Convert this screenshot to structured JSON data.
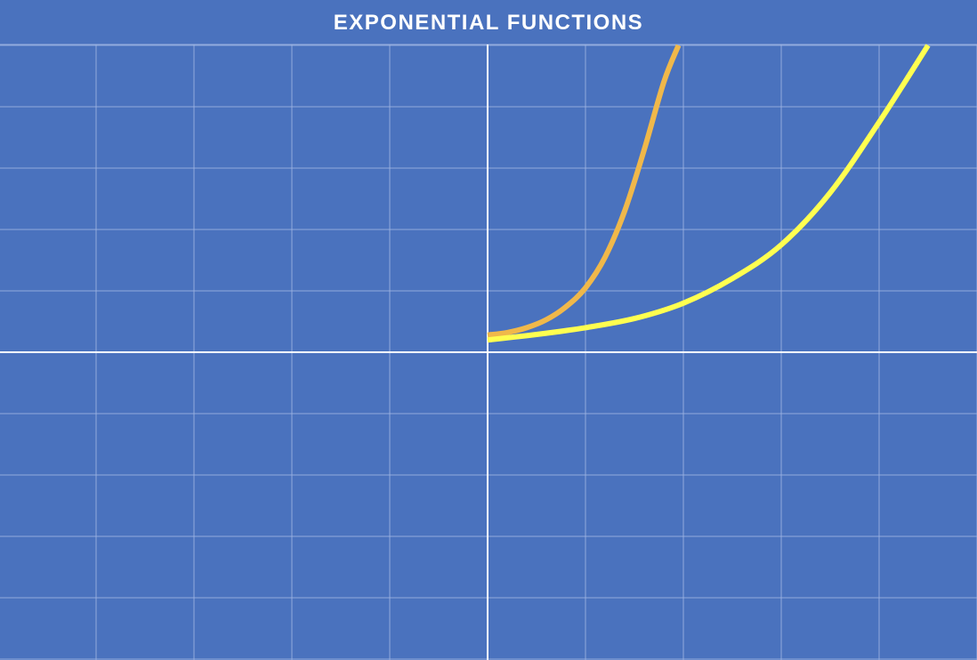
{
  "chart_data": {
    "type": "line",
    "title": "EXPONENTIAL FUNCTIONS",
    "xlabel": "",
    "ylabel": "",
    "xlim": [
      -5,
      5
    ],
    "ylim": [
      -5,
      5
    ],
    "grid": true,
    "series": [
      {
        "color": "#f0b84a",
        "x": [
          0,
          0.2,
          0.4,
          0.6,
          0.8,
          1.0,
          1.2,
          1.4,
          1.6,
          1.8,
          1.95
        ],
        "y": [
          0.28,
          0.32,
          0.4,
          0.53,
          0.74,
          1.05,
          1.55,
          2.3,
          3.3,
          4.4,
          5.0
        ]
      },
      {
        "color": "#ffff50",
        "x": [
          0,
          0.5,
          1.0,
          1.5,
          2.0,
          2.5,
          3.0,
          3.5,
          4.0,
          4.5
        ],
        "y": [
          0.2,
          0.29,
          0.4,
          0.55,
          0.8,
          1.2,
          1.75,
          2.6,
          3.75,
          5.0
        ]
      }
    ],
    "colors": {
      "background": "#4a72be",
      "grid": "#9db4e2",
      "axis": "#ffffff"
    }
  }
}
